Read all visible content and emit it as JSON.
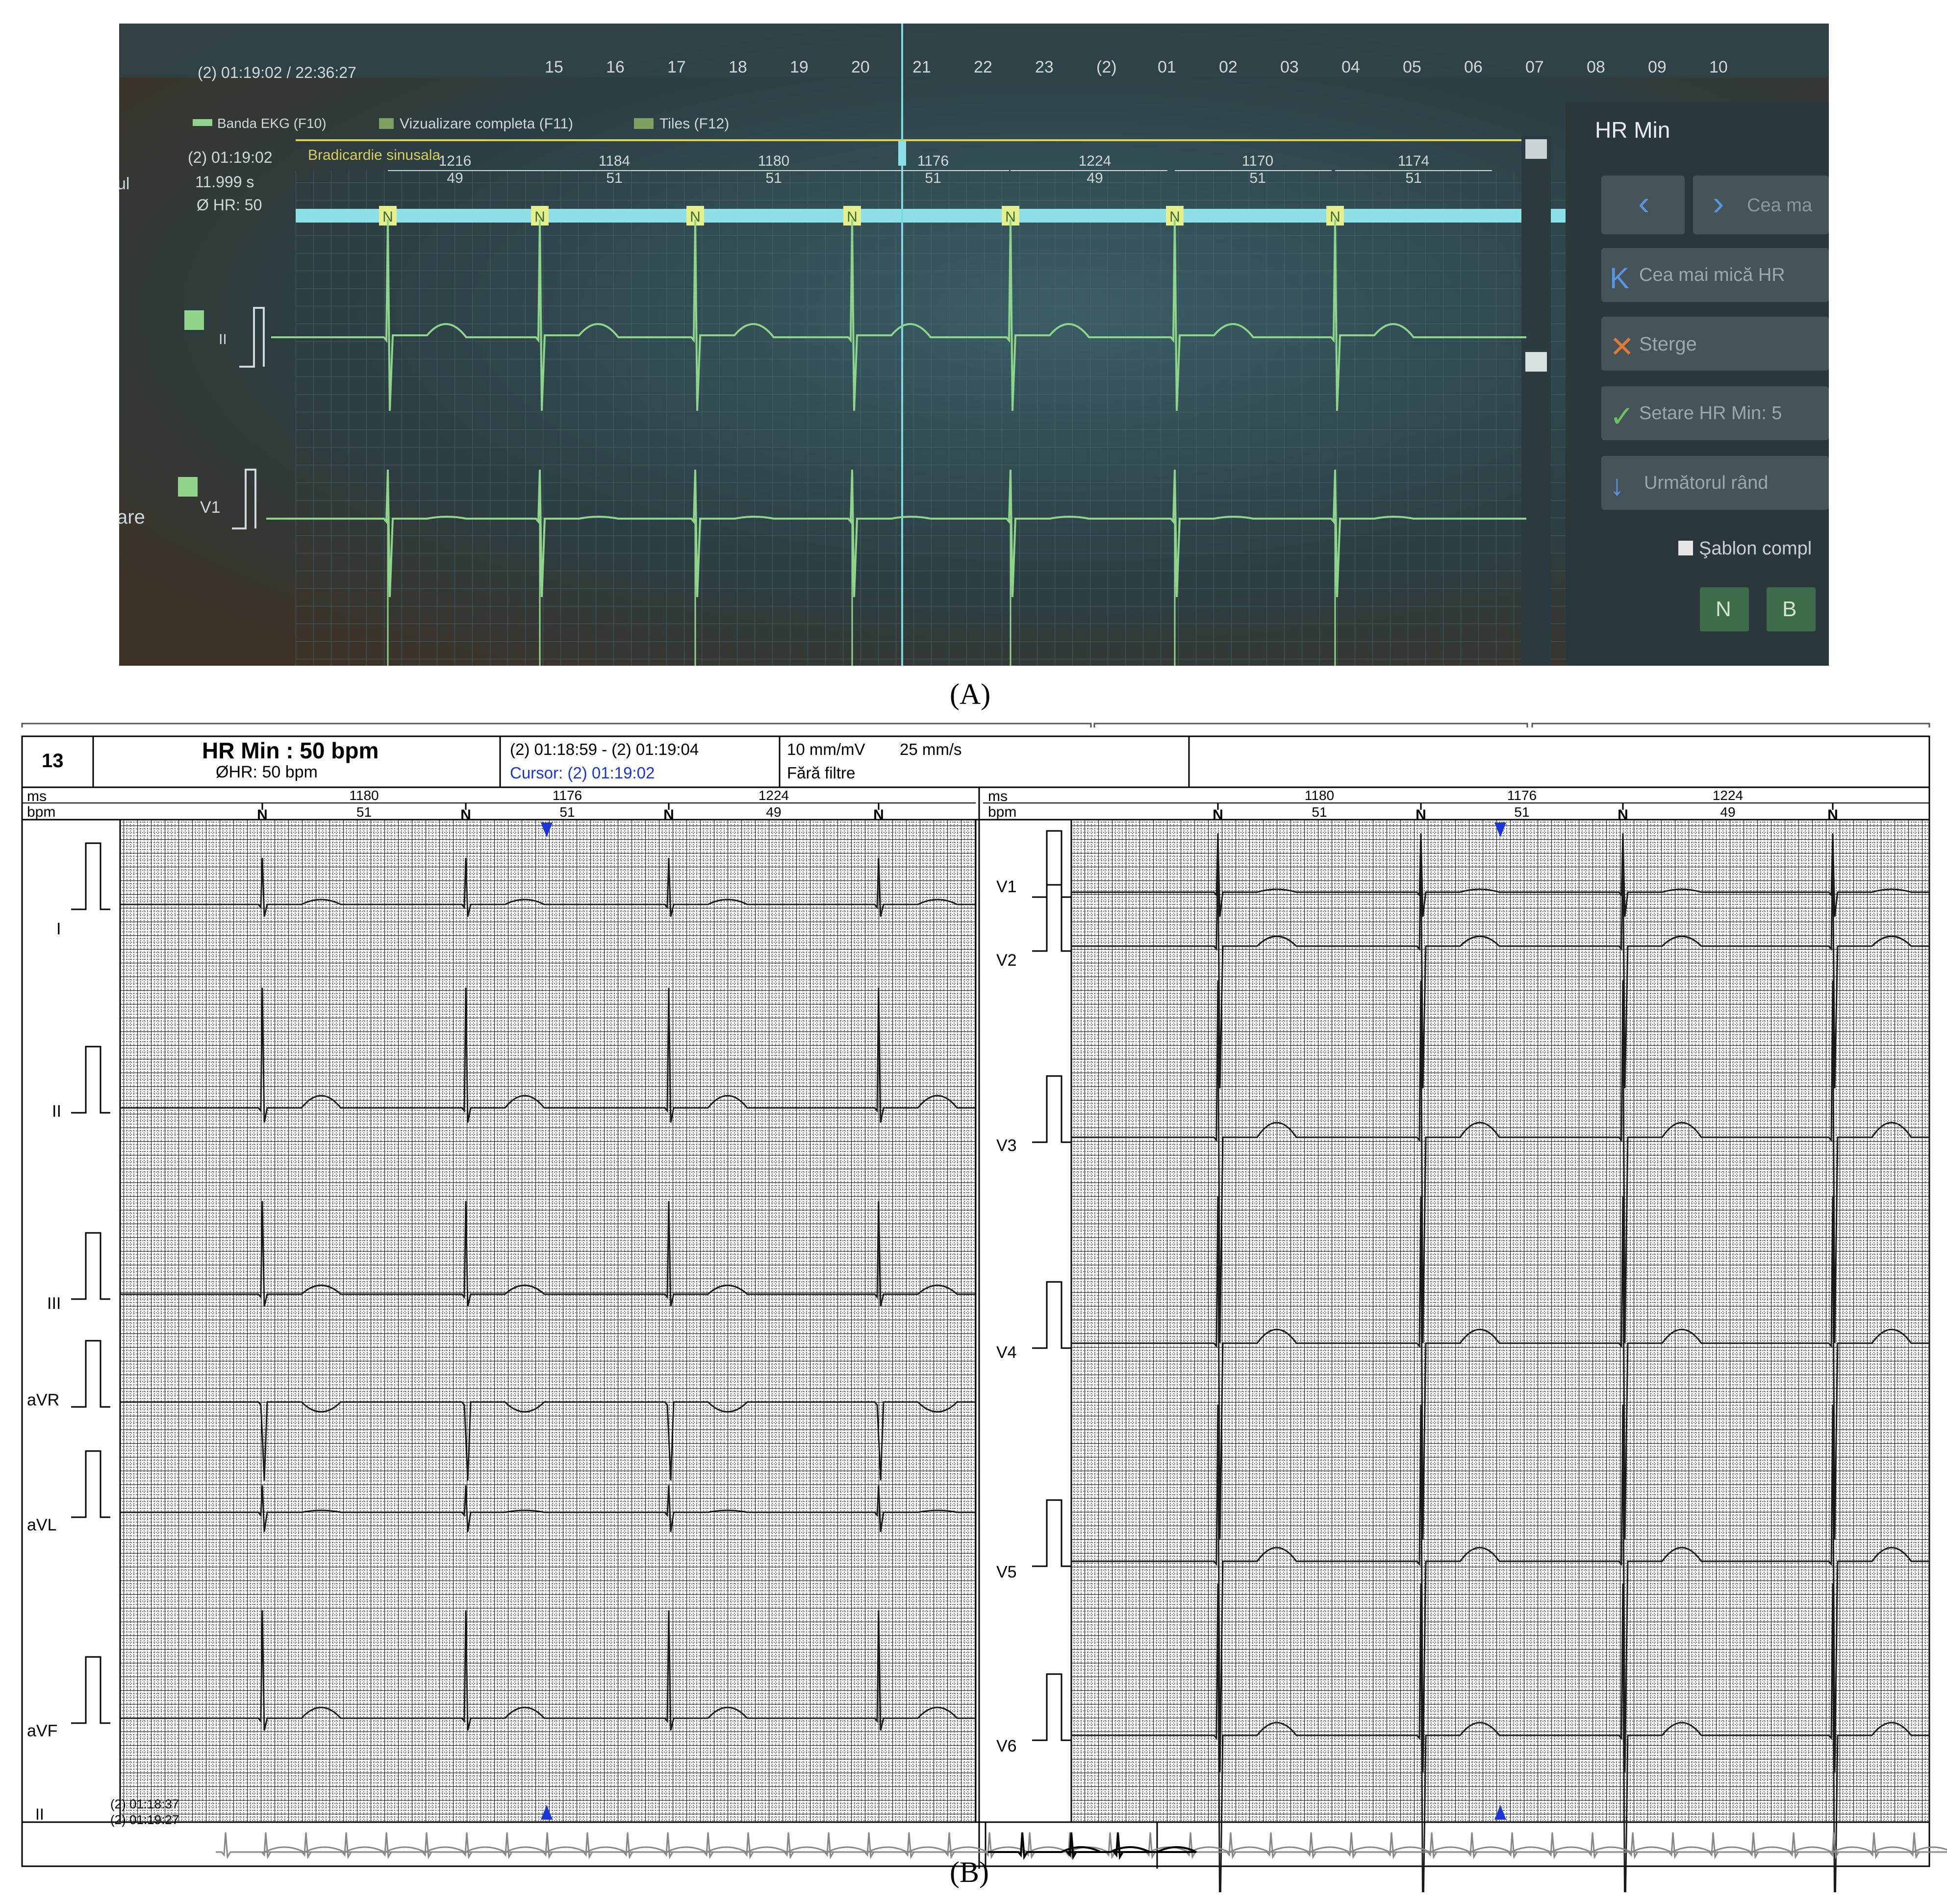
{
  "panel_a": {
    "timeline_time": "(2) 01:19:02 / 22:36:27",
    "timeline_ticks": [
      "15",
      "16",
      "17",
      "18",
      "19",
      "20",
      "21",
      "22",
      "23",
      "(2)",
      "01",
      "02",
      "03",
      "04",
      "05",
      "06",
      "07",
      "08",
      "09",
      "10"
    ],
    "tabs": [
      "Banda EKG (F10)",
      "Vizualizare completa (F11)",
      "Tiles (F12)"
    ],
    "strip_time": "(2) 01:19:02",
    "strip_duration": "11.999 s",
    "strip_avg_hr": "Ø HR: 50",
    "rhythm_label": "Bradicardie sinusala",
    "rr_ms": [
      "1216",
      "1184",
      "1180",
      "1176",
      "1224",
      "1170",
      "1174"
    ],
    "rr_bpm": [
      "49",
      "51",
      "51",
      "51",
      "49",
      "51",
      "51"
    ],
    "beat_label": "N",
    "leads": [
      "II",
      "V1"
    ],
    "left_cut_text": [
      "ul",
      "are"
    ],
    "side_panel": {
      "title": "HR Min",
      "btn_prev_icon": "<",
      "btn_next": "Cea ma",
      "btn_smallest": "Cea mai mică HR",
      "btn_delete": "Sterge",
      "btn_set": "Setare HR Min: 5",
      "btn_next_row": "Următorul rând",
      "checkbox_label": "Şablon compl",
      "btn_n": "N",
      "btn_b": "B"
    },
    "colors": {
      "trace": "#8fd48a",
      "rr_band": "#8ee0e8",
      "rhythm": "#d6d060",
      "screen_bg": "#1c2a2e"
    }
  },
  "caption_a": "(A)",
  "panel_b": {
    "number": "13",
    "title": "HR Min : 50 bpm",
    "subtitle": "ØHR: 50 bpm",
    "time_range": "(2) 01:18:59 - (2) 01:19:04",
    "cursor_label": "Cursor:  (2) 01:19:02",
    "gain": "10 mm/mV",
    "speed": "25 mm/s",
    "filters": "Fără filtre",
    "ms_label": "ms",
    "bpm_label": "bpm",
    "rr_ms": [
      "1180",
      "1176",
      "1224"
    ],
    "rr_bpm": [
      "51",
      "51",
      "49"
    ],
    "beat_label": "N",
    "leads_left": [
      "I",
      "II",
      "III",
      "aVR",
      "aVL",
      "aVF"
    ],
    "leads_right": [
      "V1",
      "V2",
      "V3",
      "V4",
      "V5",
      "V6"
    ],
    "rhythm_lead": "II",
    "rhythm_start": "(2) 01:18:37",
    "rhythm_end": "(2) 01:19:27",
    "colors": {
      "cursor": "#1a35d8",
      "trace": "#1a1a1a",
      "grid": "#000000"
    }
  },
  "caption_b": "(B)"
}
